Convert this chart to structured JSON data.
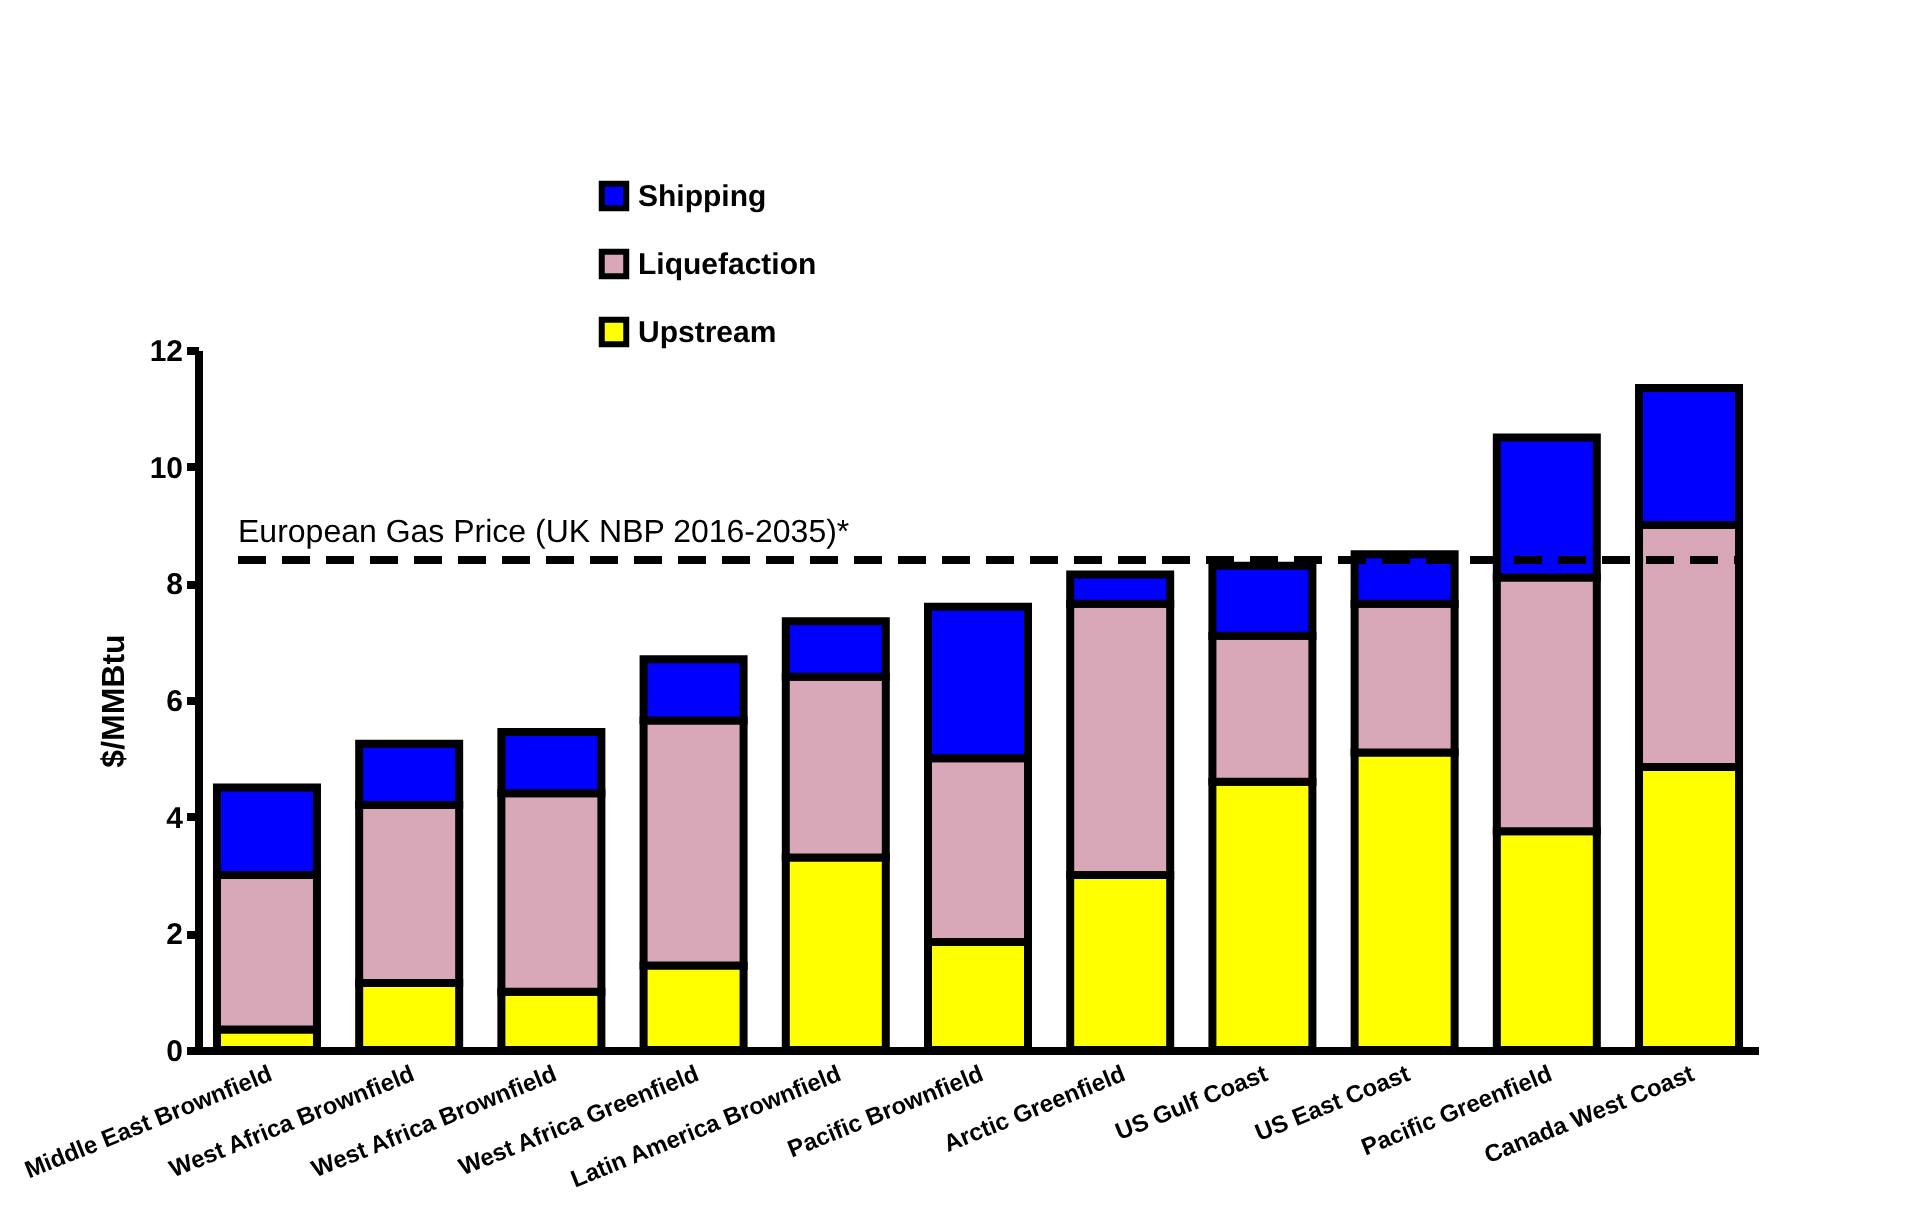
{
  "chart_data": {
    "type": "bar",
    "stacked": true,
    "ylabel": "$/MMBtu",
    "categories": [
      "Middle East Brownfield",
      "West Africa Brownfield",
      "West Africa Brownfield",
      "West Africa Greenfield",
      "Latin America Brownfield",
      "Pacific Brownfield",
      "Arctic Greenfield",
      "US Gulf Coast",
      "US East Coast",
      "Pacific Greenfield",
      "Canada West Coast"
    ],
    "series": [
      {
        "name": "Upstream",
        "color": "#ffff00",
        "values": [
          0.35,
          1.15,
          1.0,
          1.45,
          3.3,
          1.85,
          3.0,
          4.6,
          5.1,
          3.75,
          4.85
        ]
      },
      {
        "name": "Liquefaction",
        "color": "#d8a8b8",
        "values": [
          2.65,
          3.05,
          3.4,
          4.2,
          3.1,
          3.15,
          4.65,
          2.5,
          2.55,
          4.35,
          4.15
        ]
      },
      {
        "name": "Shipping",
        "color": "#0000ff",
        "values": [
          1.5,
          1.05,
          1.05,
          1.05,
          0.95,
          2.6,
          0.5,
          1.2,
          0.85,
          2.4,
          2.35
        ]
      }
    ],
    "ylim": [
      0,
      12
    ],
    "yticks": [
      0,
      2,
      4,
      6,
      8,
      10,
      12
    ],
    "grid": false,
    "legend": "top left",
    "ref_lines": [
      {
        "axis": "y",
        "value": 8.4,
        "label": "European Gas Price  (UK NBP 2016-2035)*",
        "color": "#000000",
        "line_style": "dashed"
      }
    ]
  }
}
